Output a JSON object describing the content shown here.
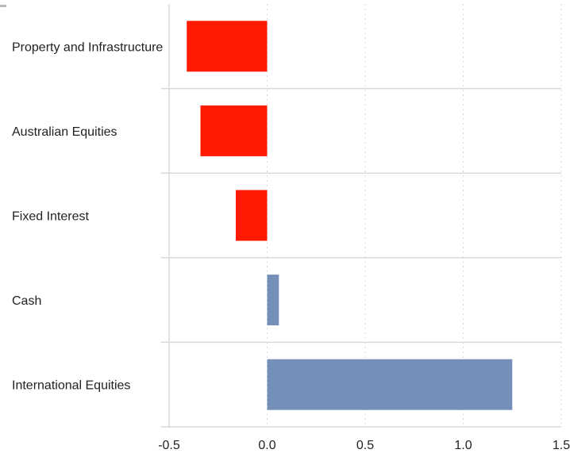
{
  "chart_data": {
    "type": "bar",
    "orientation": "horizontal",
    "title": "",
    "xlabel": "",
    "ylabel": "",
    "categories": [
      "Property and Infrastructure",
      "Australian Equities",
      "Fixed Interest",
      "Cash",
      "International Equities"
    ],
    "values": [
      -0.41,
      -0.34,
      -0.16,
      0.06,
      1.25
    ],
    "bar_colors": [
      "#ff1a00",
      "#ff1a00",
      "#ff1a00",
      "#7590b8",
      "#7590b8"
    ],
    "xlim": [
      -0.5,
      1.5
    ],
    "xticks": [
      -0.5,
      0.0,
      0.5,
      1.0,
      1.5
    ],
    "xtick_labels": [
      "-0.5",
      "0.0",
      "0.5",
      "1.0",
      "1.5"
    ],
    "grid": true,
    "legend": "none"
  },
  "colors": {
    "negative": "#ff1a00",
    "positive": "#7590b8",
    "axis": "#d9d9d9",
    "grid": "#d9d9d9"
  }
}
